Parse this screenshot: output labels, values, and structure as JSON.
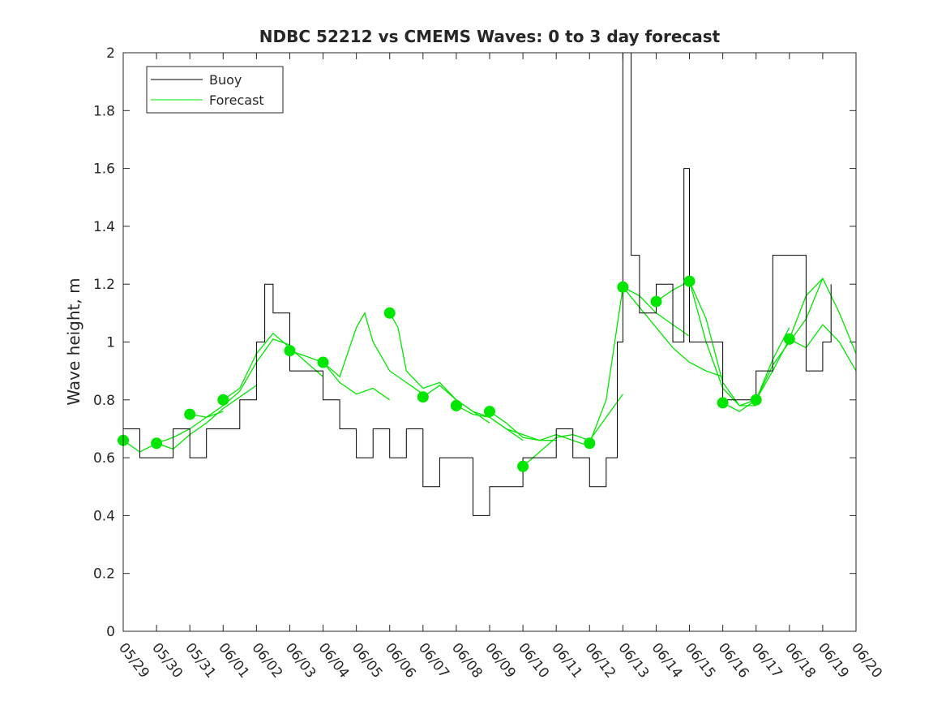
{
  "chart_data": {
    "type": "line",
    "title": "NDBC 52212 vs CMEMS Waves: 0 to 3 day forecast",
    "xlabel": "",
    "ylabel": "Wave height, m",
    "x_unit": "date (mm/dd)",
    "x_ticks": [
      "05/29",
      "05/30",
      "05/31",
      "06/01",
      "06/02",
      "06/03",
      "06/04",
      "06/05",
      "06/06",
      "06/07",
      "06/08",
      "06/09",
      "06/10",
      "06/11",
      "06/12",
      "06/13",
      "06/14",
      "06/15",
      "06/16",
      "06/17",
      "06/18",
      "06/19",
      "06/20"
    ],
    "xlim": [
      "05/29",
      "06/20"
    ],
    "ylim": [
      0,
      2
    ],
    "y_ticks": [
      "0",
      "0.2",
      "0.4",
      "0.6",
      "0.8",
      "1",
      "1.2",
      "1.4",
      "1.6",
      "1.8",
      "2"
    ],
    "grid": false,
    "legend_position": "top-left",
    "colors": {
      "buoy": "#000000",
      "forecast": "#00e600",
      "axis": "#262626"
    },
    "series": [
      {
        "name": "Buoy",
        "x": [
          "05/29 00:00",
          "05/29 12:00",
          "05/30 00:00",
          "05/30 12:00",
          "05/31 00:00",
          "05/31 12:00",
          "06/01 00:00",
          "06/01 12:00",
          "06/02 00:00",
          "06/02 06:00",
          "06/02 12:00",
          "06/03 00:00",
          "06/03 12:00",
          "06/04 00:00",
          "06/04 12:00",
          "06/05 00:00",
          "06/05 12:00",
          "06/06 00:00",
          "06/06 12:00",
          "06/07 00:00",
          "06/07 12:00",
          "06/08 00:00",
          "06/08 12:00",
          "06/09 00:00",
          "06/09 12:00",
          "06/10 00:00",
          "06/10 12:00",
          "06/11 00:00",
          "06/11 12:00",
          "06/12 00:00",
          "06/12 12:00",
          "06/12 20:00",
          "06/13 00:00",
          "06/13 06:00",
          "06/13 12:00",
          "06/14 00:00",
          "06/14 12:00",
          "06/14 20:00",
          "06/15 00:00",
          "06/15 12:00",
          "06/16 00:00",
          "06/16 12:00",
          "06/17 00:00",
          "06/17 12:00",
          "06/18 00:00",
          "06/18 12:00",
          "06/19 00:00",
          "06/19 06:00"
        ],
        "y": [
          0.7,
          0.6,
          0.6,
          0.7,
          0.6,
          0.7,
          0.7,
          0.8,
          1.0,
          1.2,
          1.1,
          0.9,
          0.9,
          0.8,
          0.7,
          0.6,
          0.7,
          0.6,
          0.7,
          0.5,
          0.6,
          0.6,
          0.4,
          0.5,
          0.5,
          0.6,
          0.6,
          0.7,
          0.6,
          0.5,
          0.6,
          1.0,
          2.0,
          1.3,
          1.1,
          1.2,
          1.0,
          1.6,
          1.0,
          1.0,
          0.8,
          0.8,
          0.9,
          1.3,
          1.3,
          0.9,
          1.0,
          1.2
        ]
      },
      {
        "name": "Forecast",
        "runs": [
          {
            "x": [
              "05/29",
              "05/29 12:00",
              "05/30",
              "05/30 12:00",
              "05/31",
              "05/31 12:00",
              "06/01"
            ],
            "y": [
              0.66,
              0.62,
              0.65,
              0.67,
              0.7,
              0.74,
              0.76
            ]
          },
          {
            "x": [
              "05/30",
              "05/30 12:00",
              "05/31",
              "05/31 12:00",
              "06/01",
              "06/01 12:00",
              "06/02"
            ],
            "y": [
              0.65,
              0.63,
              0.68,
              0.72,
              0.77,
              0.81,
              0.85
            ]
          },
          {
            "x": [
              "05/31",
              "05/31 12:00",
              "06/01",
              "06/01 12:00",
              "06/02",
              "06/02 12:00",
              "06/03"
            ],
            "y": [
              0.75,
              0.74,
              0.78,
              0.83,
              0.93,
              1.01,
              0.99
            ]
          },
          {
            "x": [
              "06/01",
              "06/01 12:00",
              "06/02",
              "06/02 12:00",
              "06/03",
              "06/03 12:00",
              "06/04"
            ],
            "y": [
              0.8,
              0.84,
              0.96,
              1.03,
              0.98,
              0.93,
              0.88
            ]
          },
          {
            "x": [
              "06/03",
              "06/03 12:00",
              "06/04",
              "06/04 12:00",
              "06/05",
              "06/05 12:00",
              "06/06"
            ],
            "y": [
              0.97,
              0.95,
              0.93,
              0.86,
              0.82,
              0.84,
              0.8
            ]
          },
          {
            "x": [
              "06/04",
              "06/04 12:00",
              "06/05",
              "06/05 06:00",
              "06/05 12:00",
              "06/06",
              "06/06 12:00",
              "06/07"
            ],
            "y": [
              0.93,
              0.88,
              1.05,
              1.1,
              1.0,
              0.9,
              0.86,
              0.82
            ]
          },
          {
            "x": [
              "06/06",
              "06/06 06:00",
              "06/06 12:00",
              "06/07",
              "06/07 12:00",
              "06/08",
              "06/08 12:00",
              "06/09"
            ],
            "y": [
              1.1,
              1.05,
              0.9,
              0.84,
              0.86,
              0.8,
              0.76,
              0.72
            ]
          },
          {
            "x": [
              "06/07",
              "06/07 12:00",
              "06/08",
              "06/08 12:00",
              "06/09",
              "06/09 12:00",
              "06/10"
            ],
            "y": [
              0.81,
              0.85,
              0.8,
              0.76,
              0.74,
              0.7,
              0.66
            ]
          },
          {
            "x": [
              "06/08",
              "06/08 12:00",
              "06/09",
              "06/09 12:00",
              "06/10",
              "06/10 12:00",
              "06/11"
            ],
            "y": [
              0.78,
              0.75,
              0.74,
              0.7,
              0.68,
              0.66,
              0.66
            ]
          },
          {
            "x": [
              "06/09",
              "06/09 12:00",
              "06/10",
              "06/10 12:00",
              "06/11",
              "06/11 12:00",
              "06/12"
            ],
            "y": [
              0.76,
              0.72,
              0.67,
              0.66,
              0.68,
              0.66,
              0.64
            ]
          },
          {
            "x": [
              "06/10",
              "06/10 12:00",
              "06/11",
              "06/11 12:00",
              "06/12",
              "06/12 12:00",
              "06/13"
            ],
            "y": [
              0.57,
              0.62,
              0.67,
              0.68,
              0.66,
              0.74,
              0.82
            ]
          },
          {
            "x": [
              "06/12",
              "06/12 12:00",
              "06/13",
              "06/13 12:00",
              "06/14",
              "06/14 12:00",
              "06/15"
            ],
            "y": [
              0.65,
              0.8,
              1.19,
              1.16,
              1.1,
              1.06,
              1.02
            ]
          },
          {
            "x": [
              "06/13",
              "06/13 12:00",
              "06/14",
              "06/14 12:00",
              "06/15",
              "06/15 12:00",
              "06/16"
            ],
            "y": [
              1.19,
              1.12,
              1.05,
              0.98,
              0.93,
              0.9,
              0.88
            ]
          },
          {
            "x": [
              "06/14",
              "06/14 12:00",
              "06/15",
              "06/15 12:00",
              "06/16",
              "06/16 12:00",
              "06/17"
            ],
            "y": [
              1.14,
              1.18,
              1.21,
              1.0,
              0.84,
              0.78,
              0.78
            ]
          },
          {
            "x": [
              "06/15",
              "06/15 12:00",
              "06/16",
              "06/16 12:00",
              "06/17",
              "06/17 12:00",
              "06/18"
            ],
            "y": [
              1.21,
              1.08,
              0.86,
              0.78,
              0.8,
              0.94,
              1.05
            ]
          },
          {
            "x": [
              "06/16",
              "06/16 12:00",
              "06/17",
              "06/17 12:00",
              "06/18",
              "06/18 12:00",
              "06/19"
            ],
            "y": [
              0.79,
              0.76,
              0.8,
              0.92,
              1.0,
              1.08,
              1.22
            ]
          },
          {
            "x": [
              "06/17",
              "06/17 12:00",
              "06/18",
              "06/18 12:00",
              "06/19",
              "06/19 12:00",
              "06/20"
            ],
            "y": [
              0.8,
              0.9,
              1.01,
              1.16,
              1.22,
              1.1,
              0.96
            ]
          },
          {
            "x": [
              "06/18",
              "06/18 12:00",
              "06/19",
              "06/19 12:00",
              "06/20"
            ],
            "y": [
              1.01,
              0.98,
              1.06,
              1.0,
              0.9
            ]
          }
        ]
      }
    ],
    "legend": [
      {
        "label": "Buoy",
        "color": "#000000"
      },
      {
        "label": "Forecast",
        "color": "#00e600"
      }
    ]
  }
}
